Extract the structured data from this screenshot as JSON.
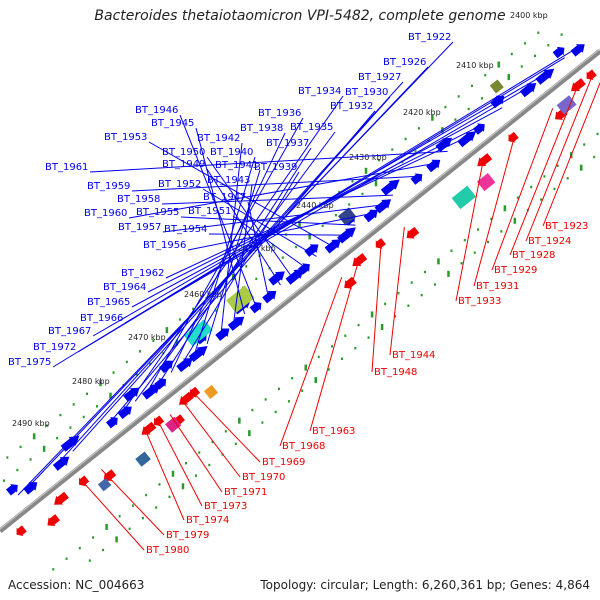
{
  "title": "Bacteroides thetaiotaomicron VPI-5482, complete genome",
  "footer": {
    "accession": "Accession: NC_004663",
    "info": "Topology: circular; Length: 6,260,361 bp; Genes: 4,864"
  },
  "colors": {
    "forward": "#0000ee",
    "reverse": "#ee0000",
    "backbone": "#888888",
    "dots": "#2a9a2a"
  },
  "kbp_ticks": [
    "2400 kbp",
    "2410 kbp",
    "2420 kbp",
    "2430 kbp",
    "2440 kbp",
    "2450 kbp",
    "2460 kbp",
    "2470 kbp",
    "2480 kbp",
    "2490 kbp"
  ],
  "labels_upper": [
    "BT_1922",
    "BT_1926",
    "BT_1927",
    "BT_1930",
    "BT_1932",
    "BT_1934",
    "BT_1935",
    "BT_1936",
    "BT_1937",
    "BT_1938",
    "BT_1939",
    "BT_1940",
    "BT_1941",
    "BT_1942",
    "BT_1943",
    "BT_1945",
    "BT_1946",
    "BT_1947",
    "BT_1949",
    "BT_1950",
    "BT_1951",
    "BT_1952",
    "BT_1953",
    "BT_1954",
    "BT_1955",
    "BT_1956",
    "BT_1957",
    "BT_1958",
    "BT_1959",
    "BT_1960",
    "BT_1961",
    "BT_1962",
    "BT_1964",
    "BT_1965",
    "BT_1966",
    "BT_1967",
    "BT_1972",
    "BT_1975"
  ],
  "labels_lower": [
    "BT_1923",
    "BT_1924",
    "BT_1928",
    "BT_1929",
    "BT_1931",
    "BT_1933",
    "BT_1944",
    "BT_1948",
    "BT_1963",
    "BT_1968",
    "BT_1969",
    "BT_1970",
    "BT_1971",
    "BT_1973",
    "BT_1974",
    "BT_1979",
    "BT_1980"
  ]
}
